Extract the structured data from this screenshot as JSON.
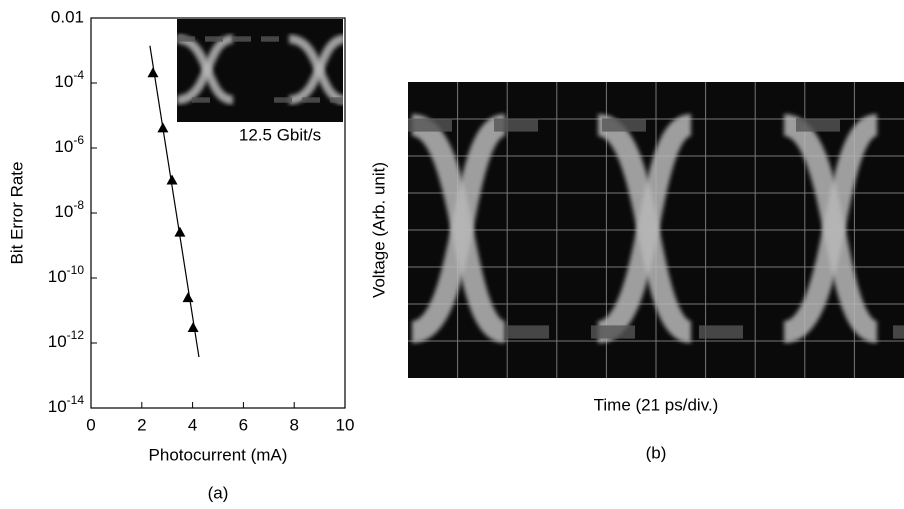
{
  "chart_data": [
    {
      "type": "scatter",
      "xlabel": "Photocurrent (mA)",
      "ylabel": "Bit Error Rate",
      "caption": "(a)",
      "inset_label": "12.5 Gbit/s",
      "x": [
        2.44,
        2.83,
        3.19,
        3.5,
        3.82,
        4.02
      ],
      "values": [
        0.0002,
        4e-06,
        1e-07,
        2.5e-09,
        2.4e-11,
        2.9e-12
      ],
      "color": "#000000",
      "fit": {
        "x": [
          2.32,
          4.25
        ],
        "values": [
          0.0014,
          3.7e-13
        ]
      },
      "log_y": true,
      "xlim": [
        0,
        10
      ],
      "xticks": [
        0,
        2,
        4,
        6,
        8,
        10
      ],
      "ylim": [
        1e-14,
        0.01
      ],
      "yticks": [
        0.01,
        {
          "value": 0.0001,
          "label": "10-4"
        },
        {
          "value": 1e-06,
          "label": "10-6"
        },
        {
          "value": 1e-08,
          "label": "10-8"
        },
        {
          "value": 1e-10,
          "label": "10-10"
        },
        {
          "value": 1e-12,
          "label": "10-12"
        },
        {
          "value": 1e-14,
          "label": "10-14"
        }
      ]
    },
    {
      "type": "eye",
      "xlabel": "Time (21 ps/div.)",
      "ylabel": "Voltage (Arb. unit)",
      "caption": "(b)"
    }
  ]
}
